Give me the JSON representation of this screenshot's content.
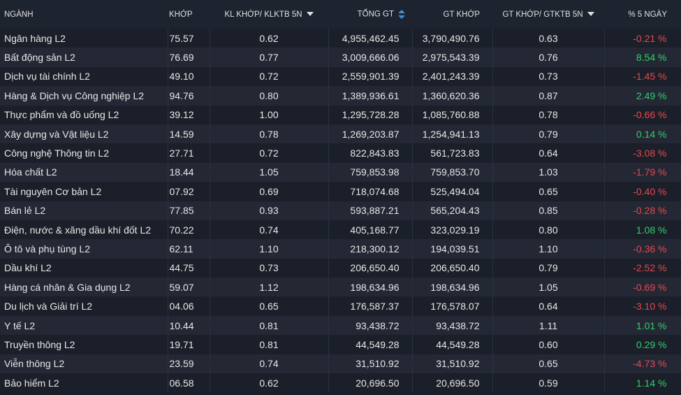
{
  "table": {
    "headers": [
      "NGÀNH",
      "KHỚP",
      "KL KHỚP/ KLKTB 5N",
      "TỔNG GT",
      "GT KHỚP",
      "GT KHỚP/ GTKTB 5N",
      "% 5 NGÀY"
    ],
    "rows": [
      [
        "Ngân hàng L2",
        "75.57",
        "0.62",
        "4,955,462.45",
        "3,790,490.76",
        "0.63",
        "-0.21 %"
      ],
      [
        "Bất động sản L2",
        "76.69",
        "0.77",
        "3,009,666.06",
        "2,975,543.39",
        "0.76",
        "8.54 %"
      ],
      [
        "Dịch vụ tài chính L2",
        "49.10",
        "0.72",
        "2,559,901.39",
        "2,401,243.39",
        "0.73",
        "-1.45 %"
      ],
      [
        "Hàng & Dịch vụ Công nghiệp L2",
        "94.76",
        "0.80",
        "1,389,936.61",
        "1,360,620.36",
        "0.87",
        "2.49 %"
      ],
      [
        "Thực phẩm và đồ uống L2",
        "39.12",
        "1.00",
        "1,295,728.28",
        "1,085,760.88",
        "0.78",
        "-0.66 %"
      ],
      [
        "Xây dựng và Vật liệu L2",
        "14.59",
        "0.78",
        "1,269,203.87",
        "1,254,941.13",
        "0.79",
        "0.14 %"
      ],
      [
        "Công nghệ Thông tin L2",
        "27.71",
        "0.72",
        "822,843.83",
        "561,723.83",
        "0.64",
        "-3.08 %"
      ],
      [
        "Hóa chất L2",
        "18.44",
        "1.05",
        "759,853.98",
        "759,853.70",
        "1.03",
        "-1.79 %"
      ],
      [
        "Tài nguyên Cơ bản L2",
        "07.92",
        "0.69",
        "718,074.68",
        "525,494.04",
        "0.65",
        "-0.40 %"
      ],
      [
        "Bán lẻ L2",
        "77.85",
        "0.93",
        "593,887.21",
        "565,204.43",
        "0.85",
        "-0.28 %"
      ],
      [
        "Điện, nước & xăng dầu khí đốt L2",
        "70.22",
        "0.74",
        "405,168.77",
        "323,029.19",
        "0.80",
        "1.08 %"
      ],
      [
        "Ô tô và phụ tùng L2",
        "62.11",
        "1.10",
        "218,300.12",
        "194,039.51",
        "1.10",
        "-0.36 %"
      ],
      [
        "Dầu khí L2",
        "44.75",
        "0.73",
        "206,650.40",
        "206,650.40",
        "0.79",
        "-2.52 %"
      ],
      [
        "Hàng cá nhân & Gia dụng L2",
        "59.07",
        "1.12",
        "198,634.96",
        "198,634.96",
        "1.05",
        "-0.69 %"
      ],
      [
        "Du lịch và Giải trí L2",
        "04.06",
        "0.65",
        "176,587.37",
        "176,578.07",
        "0.64",
        "-3.10 %"
      ],
      [
        "Y tế L2",
        "10.44",
        "0.81",
        "93,438.72",
        "93,438.72",
        "1.11",
        "1.01 %"
      ],
      [
        "Truyền thông L2",
        "19.71",
        "0.81",
        "44,549.28",
        "44,549.28",
        "0.60",
        "0.29 %"
      ],
      [
        "Viễn thông L2",
        "23.59",
        "0.74",
        "31,510.92",
        "31,510.92",
        "0.65",
        "-4.73 %"
      ],
      [
        "Bảo hiểm L2",
        "06.58",
        "0.62",
        "20,696.50",
        "20,696.50",
        "0.59",
        "1.14 %"
      ]
    ]
  }
}
